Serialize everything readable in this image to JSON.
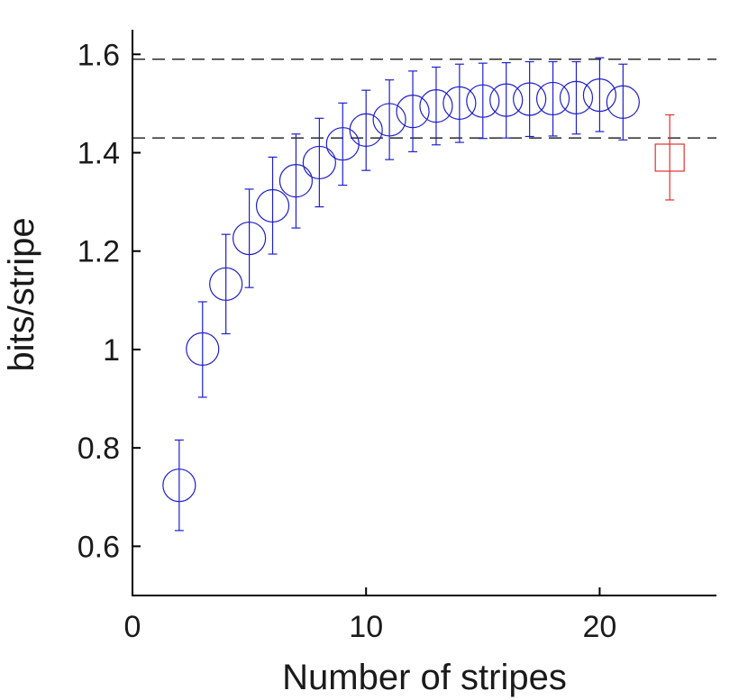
{
  "chart_data": {
    "type": "scatter",
    "xlabel": "Number of stripes",
    "ylabel": "bits/stripe",
    "xlim": [
      0,
      25
    ],
    "ylim": [
      0.5,
      1.65
    ],
    "x_ticks": [
      0,
      10,
      20
    ],
    "y_ticks": [
      0.6,
      0.8,
      1,
      1.2,
      1.4,
      1.6
    ],
    "x_tick_labels": [
      "0",
      "10",
      "20"
    ],
    "y_tick_labels": [
      "0.6",
      "0.8",
      "1",
      "1.2",
      "1.4",
      "1.6"
    ],
    "grid": false,
    "reference_lines": [
      1.59,
      1.43
    ],
    "series": [
      {
        "marker": "circle",
        "color": "#1f1fcc",
        "points": [
          {
            "x": 2,
            "y": 0.724,
            "err_low": 0.632,
            "err_high": 0.816
          },
          {
            "x": 3,
            "y": 1.001,
            "err_low": 0.903,
            "err_high": 1.097
          },
          {
            "x": 4,
            "y": 1.133,
            "err_low": 1.032,
            "err_high": 1.234
          },
          {
            "x": 5,
            "y": 1.226,
            "err_low": 1.126,
            "err_high": 1.326
          },
          {
            "x": 6,
            "y": 1.292,
            "err_low": 1.194,
            "err_high": 1.391
          },
          {
            "x": 7,
            "y": 1.343,
            "err_low": 1.247,
            "err_high": 1.438
          },
          {
            "x": 8,
            "y": 1.38,
            "err_low": 1.29,
            "err_high": 1.47
          },
          {
            "x": 9,
            "y": 1.418,
            "err_low": 1.334,
            "err_high": 1.501
          },
          {
            "x": 10,
            "y": 1.446,
            "err_low": 1.364,
            "err_high": 1.527
          },
          {
            "x": 11,
            "y": 1.467,
            "err_low": 1.386,
            "err_high": 1.548
          },
          {
            "x": 12,
            "y": 1.484,
            "err_low": 1.402,
            "err_high": 1.566
          },
          {
            "x": 13,
            "y": 1.495,
            "err_low": 1.416,
            "err_high": 1.574
          },
          {
            "x": 14,
            "y": 1.501,
            "err_low": 1.421,
            "err_high": 1.58
          },
          {
            "x": 15,
            "y": 1.505,
            "err_low": 1.429,
            "err_high": 1.582
          },
          {
            "x": 16,
            "y": 1.507,
            "err_low": 1.43,
            "err_high": 1.583
          },
          {
            "x": 17,
            "y": 1.509,
            "err_low": 1.433,
            "err_high": 1.585
          },
          {
            "x": 18,
            "y": 1.51,
            "err_low": 1.434,
            "err_high": 1.585
          },
          {
            "x": 19,
            "y": 1.512,
            "err_low": 1.438,
            "err_high": 1.585
          },
          {
            "x": 20,
            "y": 1.517,
            "err_low": 1.443,
            "err_high": 1.593
          },
          {
            "x": 21,
            "y": 1.503,
            "err_low": 1.426,
            "err_high": 1.58
          }
        ]
      },
      {
        "marker": "square",
        "color": "#e03030",
        "points": [
          {
            "x": 23,
            "y": 1.39,
            "err_low": 1.304,
            "err_high": 1.477
          }
        ]
      }
    ]
  }
}
